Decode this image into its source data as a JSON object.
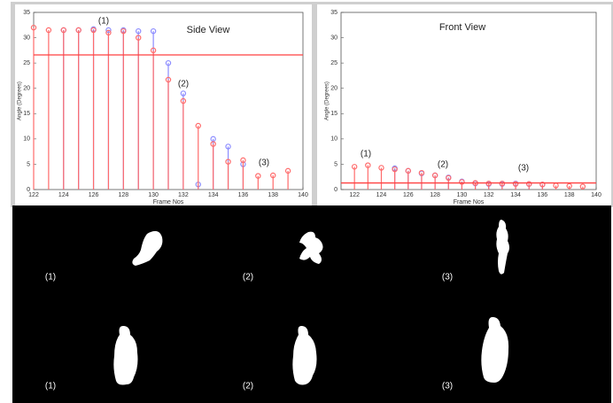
{
  "chart_data": [
    {
      "type": "stem",
      "title": "Side View",
      "x_label": "Frame Nos",
      "y_label": "Angle (Degrees)",
      "x": [
        122,
        123,
        124,
        125,
        126,
        127,
        128,
        129,
        130,
        131,
        132,
        133,
        134,
        135,
        136,
        137,
        138,
        139
      ],
      "series": [
        {
          "color": "#8c8cff",
          "values": [
            null,
            null,
            31.5,
            31.5,
            31.7,
            31.5,
            31.5,
            31.3,
            31.3,
            25,
            19,
            1,
            10,
            8.5,
            5,
            null,
            null,
            null
          ]
        },
        {
          "color": "#ff6b6b",
          "values": [
            32,
            31.5,
            31.5,
            31.5,
            31.5,
            31,
            31.3,
            30,
            27.5,
            21.7,
            17.5,
            12.6,
            9,
            5.5,
            5.8,
            2.7,
            2.8,
            3.7
          ]
        }
      ],
      "threshold": 26.6,
      "threshold_color": "#ff4040",
      "annotations": [
        "(1)",
        "(2)",
        "(3)"
      ],
      "xlim": [
        122,
        140
      ],
      "xticks": [
        122,
        124,
        126,
        128,
        130,
        132,
        134,
        136,
        138,
        140
      ],
      "ylim": [
        0,
        35
      ],
      "yticks": [
        0,
        5,
        10,
        15,
        20,
        25,
        30,
        35
      ]
    },
    {
      "type": "stem",
      "title": "Front View",
      "x_label": "Frame Nos",
      "y_label": "Angle (Degrees)",
      "x": [
        122,
        123,
        124,
        125,
        126,
        127,
        128,
        129,
        130,
        131,
        132,
        133,
        134,
        135,
        136,
        137,
        138,
        139
      ],
      "series": [
        {
          "color": "#8c8cff",
          "values": [
            null,
            null,
            null,
            4.2,
            3.7,
            3.2,
            2.8,
            2.4,
            1.6,
            1.2,
            1.1,
            1.1,
            1.2,
            1.1,
            1,
            null,
            null,
            null
          ]
        },
        {
          "color": "#ff6b6b",
          "values": [
            4.5,
            4.8,
            4.3,
            4,
            3.7,
            3.3,
            2.8,
            2.3,
            1.5,
            1.3,
            1.2,
            1.2,
            1.1,
            1.1,
            1,
            0.8,
            0.7,
            0.6
          ]
        }
      ],
      "threshold": 1.3,
      "threshold_color": "#ff4040",
      "annotations": [
        "(1)",
        "(2)",
        "(3)"
      ],
      "xlim": [
        121,
        140
      ],
      "xticks": [
        122,
        124,
        126,
        128,
        130,
        132,
        134,
        136,
        138,
        140
      ],
      "ylim": [
        0,
        35
      ],
      "yticks": [
        0,
        5,
        10,
        15,
        20,
        25,
        30,
        35
      ]
    }
  ],
  "figure_labels": [
    "(1)",
    "(2)",
    "(3)",
    "(1)",
    "(2)",
    "(3)"
  ]
}
